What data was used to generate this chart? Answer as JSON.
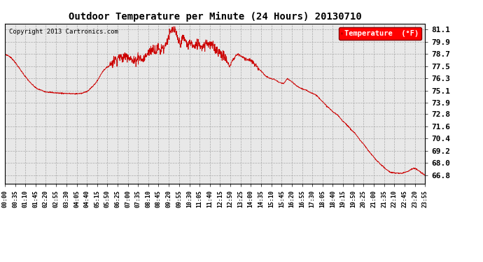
{
  "title": "Outdoor Temperature per Minute (24 Hours) 20130710",
  "copyright_text": "Copyright 2013 Cartronics.com",
  "legend_label": "Temperature  (°F)",
  "line_color": "#cc0000",
  "bg_color": "#ffffff",
  "plot_bg_color": "#e8e8e8",
  "grid_color": "#999999",
  "yticks": [
    66.8,
    68.0,
    69.2,
    70.4,
    71.6,
    72.8,
    73.9,
    75.1,
    76.3,
    77.5,
    78.7,
    79.9,
    81.1
  ],
  "ylim": [
    66.0,
    81.7
  ],
  "xtick_labels": [
    "00:00",
    "00:35",
    "01:10",
    "01:45",
    "02:20",
    "02:55",
    "03:30",
    "04:05",
    "04:40",
    "05:15",
    "05:50",
    "06:25",
    "07:00",
    "07:35",
    "08:10",
    "08:45",
    "09:20",
    "09:55",
    "10:30",
    "11:05",
    "11:40",
    "12:15",
    "12:50",
    "13:25",
    "14:00",
    "14:35",
    "15:10",
    "15:45",
    "16:20",
    "16:55",
    "17:30",
    "18:05",
    "18:40",
    "19:15",
    "19:50",
    "20:25",
    "21:00",
    "21:35",
    "22:10",
    "22:45",
    "23:20",
    "23:55"
  ],
  "num_minutes": 1440,
  "key_points": [
    [
      0,
      78.7
    ],
    [
      15,
      78.5
    ],
    [
      30,
      78.1
    ],
    [
      50,
      77.3
    ],
    [
      70,
      76.5
    ],
    [
      90,
      75.8
    ],
    [
      110,
      75.3
    ],
    [
      140,
      75.0
    ],
    [
      170,
      74.9
    ],
    [
      200,
      74.85
    ],
    [
      240,
      74.8
    ],
    [
      265,
      74.85
    ],
    [
      285,
      75.1
    ],
    [
      300,
      75.5
    ],
    [
      315,
      76.0
    ],
    [
      325,
      76.5
    ],
    [
      335,
      77.0
    ],
    [
      345,
      77.3
    ],
    [
      355,
      77.5
    ],
    [
      365,
      77.8
    ],
    [
      375,
      78.1
    ],
    [
      385,
      78.3
    ],
    [
      393,
      78.5
    ],
    [
      400,
      78.2
    ],
    [
      410,
      78.5
    ],
    [
      420,
      78.6
    ],
    [
      430,
      78.3
    ],
    [
      440,
      77.9
    ],
    [
      450,
      78.2
    ],
    [
      460,
      78.5
    ],
    [
      470,
      78.1
    ],
    [
      480,
      78.4
    ],
    [
      490,
      78.8
    ],
    [
      500,
      79.1
    ],
    [
      510,
      79.3
    ],
    [
      518,
      79.0
    ],
    [
      525,
      79.4
    ],
    [
      532,
      78.9
    ],
    [
      538,
      79.5
    ],
    [
      545,
      79.2
    ],
    [
      552,
      79.8
    ],
    [
      558,
      80.2
    ],
    [
      565,
      80.6
    ],
    [
      572,
      81.0
    ],
    [
      578,
      81.1
    ],
    [
      585,
      80.8
    ],
    [
      592,
      80.2
    ],
    [
      600,
      79.7
    ],
    [
      607,
      80.1
    ],
    [
      613,
      80.3
    ],
    [
      620,
      79.9
    ],
    [
      628,
      79.5
    ],
    [
      635,
      80.0
    ],
    [
      642,
      79.6
    ],
    [
      650,
      79.3
    ],
    [
      658,
      79.7
    ],
    [
      665,
      79.8
    ],
    [
      673,
      79.4
    ],
    [
      682,
      79.6
    ],
    [
      690,
      79.9
    ],
    [
      700,
      79.7
    ],
    [
      710,
      79.5
    ],
    [
      720,
      79.3
    ],
    [
      730,
      79.0
    ],
    [
      740,
      78.8
    ],
    [
      748,
      78.5
    ],
    [
      755,
      78.3
    ],
    [
      762,
      77.9
    ],
    [
      770,
      77.5
    ],
    [
      778,
      78.0
    ],
    [
      785,
      78.3
    ],
    [
      793,
      78.6
    ],
    [
      800,
      78.7
    ],
    [
      810,
      78.5
    ],
    [
      820,
      78.3
    ],
    [
      830,
      78.2
    ],
    [
      840,
      78.1
    ],
    [
      852,
      77.8
    ],
    [
      862,
      77.5
    ],
    [
      872,
      77.2
    ],
    [
      882,
      76.9
    ],
    [
      895,
      76.5
    ],
    [
      910,
      76.3
    ],
    [
      925,
      76.2
    ],
    [
      940,
      75.9
    ],
    [
      955,
      75.8
    ],
    [
      968,
      76.3
    ],
    [
      977,
      76.1
    ],
    [
      990,
      75.8
    ],
    [
      1003,
      75.5
    ],
    [
      1018,
      75.3
    ],
    [
      1035,
      75.1
    ],
    [
      1050,
      74.9
    ],
    [
      1065,
      74.7
    ],
    [
      1080,
      74.3
    ],
    [
      1095,
      73.8
    ],
    [
      1110,
      73.4
    ],
    [
      1125,
      73.0
    ],
    [
      1140,
      72.7
    ],
    [
      1155,
      72.2
    ],
    [
      1170,
      71.8
    ],
    [
      1185,
      71.3
    ],
    [
      1200,
      70.9
    ],
    [
      1215,
      70.3
    ],
    [
      1230,
      69.8
    ],
    [
      1245,
      69.2
    ],
    [
      1260,
      68.7
    ],
    [
      1275,
      68.2
    ],
    [
      1290,
      67.8
    ],
    [
      1305,
      67.4
    ],
    [
      1320,
      67.1
    ],
    [
      1340,
      67.0
    ],
    [
      1360,
      67.0
    ],
    [
      1380,
      67.2
    ],
    [
      1400,
      67.5
    ],
    [
      1415,
      67.3
    ],
    [
      1428,
      67.0
    ],
    [
      1439,
      66.8
    ]
  ]
}
